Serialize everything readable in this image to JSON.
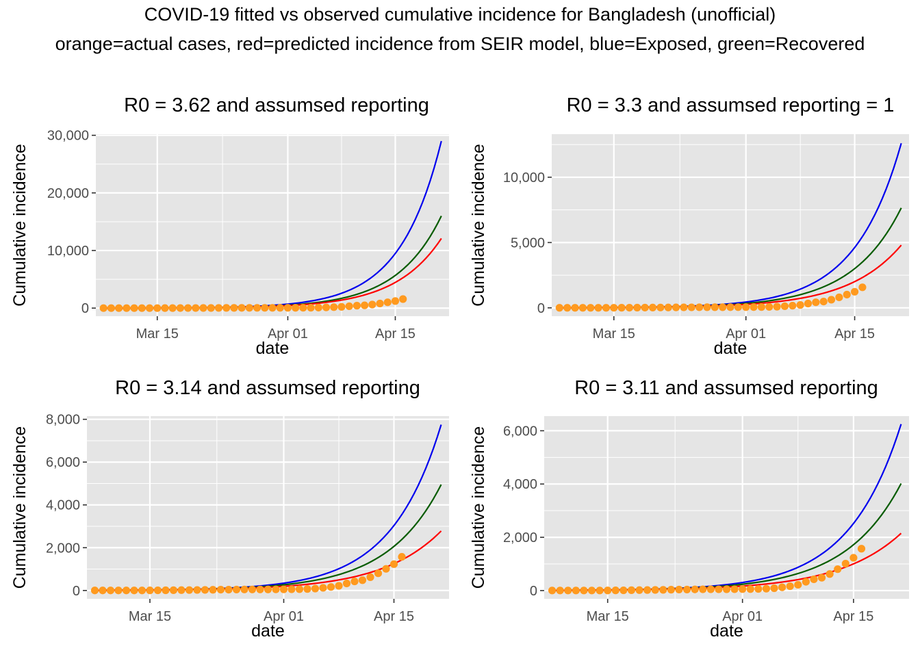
{
  "figure": {
    "title": "COVID-19 fitted vs observed cumulative incidence for Bangladesh (unofficial)",
    "subtitle": "orange=actual cases, red=predicted incidence from SEIR model, blue=Exposed, green=Recovered"
  },
  "colors": {
    "panel_bg": "#e5e5e5",
    "grid": "#ffffff",
    "observed": "#ff9a1f",
    "predicted": "#ff0000",
    "exposed": "#0000ee",
    "recovered": "#075c00",
    "tick_text": "#4d4d4d"
  },
  "chart_data": [
    {
      "type": "line",
      "title": "R0 = 3.62 and assumsed reporting",
      "xlabel": "date",
      "ylabel": "Cumulative incidence",
      "x_tick_labels": [
        "Mar 15",
        "Apr 01",
        "Apr 15"
      ],
      "xlim": [
        "2020-03-07",
        "2020-04-22"
      ],
      "ylim": [
        -1400,
        30200
      ],
      "y_ticks": [
        0,
        10000,
        20000,
        30000
      ],
      "y_tick_labels": [
        "0",
        "10,000",
        "20,000",
        "30,000"
      ],
      "fitted_series": [
        {
          "role": "exposed",
          "color": "#0000ee",
          "end_value": 29000
        },
        {
          "role": "recovered",
          "color": "#075c00",
          "end_value": 16000
        },
        {
          "role": "predicted",
          "color": "#ff0000",
          "end_value": 12100
        }
      ],
      "observed_final": 1572
    },
    {
      "type": "line",
      "title": "R0 = 3.3 and assumsed reporting = 1",
      "xlabel": "date",
      "ylabel": "Cumulative incidence",
      "x_tick_labels": [
        "Mar 15",
        "Apr 01",
        "Apr 15"
      ],
      "xlim": [
        "2020-03-07",
        "2020-04-22"
      ],
      "ylim": [
        -640,
        13300
      ],
      "y_ticks": [
        0,
        5000,
        10000
      ],
      "y_tick_labels": [
        "0",
        "5,000",
        "10,000"
      ],
      "fitted_series": [
        {
          "role": "exposed",
          "color": "#0000ee",
          "end_value": 12600
        },
        {
          "role": "recovered",
          "color": "#075c00",
          "end_value": 7650
        },
        {
          "role": "predicted",
          "color": "#ff0000",
          "end_value": 4800
        }
      ],
      "observed_final": 1572
    },
    {
      "type": "line",
      "title": "R0 = 3.14 and assumsed reporting",
      "xlabel": "date",
      "ylabel": "Cumulative incidence",
      "x_tick_labels": [
        "Mar 15",
        "Apr 01",
        "Apr 15"
      ],
      "xlim": [
        "2020-03-07",
        "2020-04-22"
      ],
      "ylim": [
        -390,
        8150
      ],
      "y_ticks": [
        0,
        2000,
        4000,
        6000,
        8000
      ],
      "y_tick_labels": [
        "0",
        "2,000",
        "4,000",
        "6,000",
        "8,000"
      ],
      "fitted_series": [
        {
          "role": "exposed",
          "color": "#0000ee",
          "end_value": 7750
        },
        {
          "role": "recovered",
          "color": "#075c00",
          "end_value": 4950
        },
        {
          "role": "predicted",
          "color": "#ff0000",
          "end_value": 2780
        }
      ],
      "observed_final": 1572
    },
    {
      "type": "line",
      "title": "R0 = 3.11 and assumsed reporting",
      "xlabel": "date",
      "ylabel": "Cumulative incidence",
      "x_tick_labels": [
        "Mar 15",
        "Apr 01",
        "Apr 15"
      ],
      "xlim": [
        "2020-03-07",
        "2020-04-22"
      ],
      "ylim": [
        -310,
        6550
      ],
      "y_ticks": [
        0,
        2000,
        4000,
        6000
      ],
      "y_tick_labels": [
        "0",
        "2,000",
        "4,000",
        "6,000"
      ],
      "fitted_series": [
        {
          "role": "exposed",
          "color": "#0000ee",
          "end_value": 6250
        },
        {
          "role": "recovered",
          "color": "#075c00",
          "end_value": 4020
        },
        {
          "role": "predicted",
          "color": "#ff0000",
          "end_value": 2150
        }
      ],
      "observed_final": 1572
    }
  ],
  "observed_cases": {
    "dates": [
      "2020-03-08",
      "2020-03-09",
      "2020-03-10",
      "2020-03-11",
      "2020-03-12",
      "2020-03-13",
      "2020-03-14",
      "2020-03-15",
      "2020-03-16",
      "2020-03-17",
      "2020-03-18",
      "2020-03-19",
      "2020-03-20",
      "2020-03-21",
      "2020-03-22",
      "2020-03-23",
      "2020-03-24",
      "2020-03-25",
      "2020-03-26",
      "2020-03-27",
      "2020-03-28",
      "2020-03-29",
      "2020-03-30",
      "2020-03-31",
      "2020-04-01",
      "2020-04-02",
      "2020-04-03",
      "2020-04-04",
      "2020-04-05",
      "2020-04-06",
      "2020-04-07",
      "2020-04-08",
      "2020-04-09",
      "2020-04-10",
      "2020-04-11",
      "2020-04-12",
      "2020-04-13",
      "2020-04-14",
      "2020-04-15",
      "2020-04-16"
    ],
    "values": [
      3,
      3,
      3,
      3,
      3,
      3,
      3,
      5,
      8,
      10,
      14,
      17,
      20,
      24,
      27,
      33,
      39,
      39,
      44,
      48,
      48,
      48,
      49,
      51,
      54,
      56,
      61,
      70,
      88,
      123,
      164,
      218,
      330,
      424,
      482,
      621,
      803,
      1012,
      1231,
      1572
    ]
  }
}
